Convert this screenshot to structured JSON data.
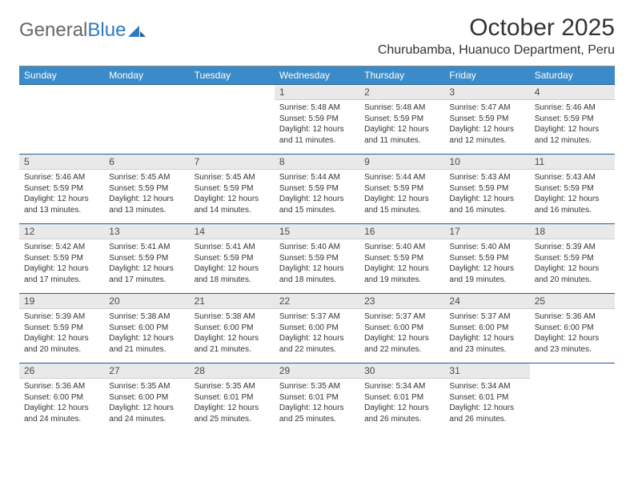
{
  "brand": {
    "part1": "General",
    "part2": "Blue"
  },
  "title": "October 2025",
  "location": "Churubamba, Huanuco Department, Peru",
  "colors": {
    "header_bg": "#3b8bc8",
    "header_text": "#ffffff",
    "daynum_bg": "#e9e9e9",
    "rule": "#1f5f96",
    "logo_gray": "#666666",
    "logo_blue": "#2f7bbf"
  },
  "weekdays": [
    "Sunday",
    "Monday",
    "Tuesday",
    "Wednesday",
    "Thursday",
    "Friday",
    "Saturday"
  ],
  "weeks": [
    [
      {
        "num": "",
        "lines": [
          "",
          "",
          "",
          ""
        ]
      },
      {
        "num": "",
        "lines": [
          "",
          "",
          "",
          ""
        ]
      },
      {
        "num": "",
        "lines": [
          "",
          "",
          "",
          ""
        ]
      },
      {
        "num": "1",
        "lines": [
          "Sunrise: 5:48 AM",
          "Sunset: 5:59 PM",
          "Daylight: 12 hours",
          "and 11 minutes."
        ]
      },
      {
        "num": "2",
        "lines": [
          "Sunrise: 5:48 AM",
          "Sunset: 5:59 PM",
          "Daylight: 12 hours",
          "and 11 minutes."
        ]
      },
      {
        "num": "3",
        "lines": [
          "Sunrise: 5:47 AM",
          "Sunset: 5:59 PM",
          "Daylight: 12 hours",
          "and 12 minutes."
        ]
      },
      {
        "num": "4",
        "lines": [
          "Sunrise: 5:46 AM",
          "Sunset: 5:59 PM",
          "Daylight: 12 hours",
          "and 12 minutes."
        ]
      }
    ],
    [
      {
        "num": "5",
        "lines": [
          "Sunrise: 5:46 AM",
          "Sunset: 5:59 PM",
          "Daylight: 12 hours",
          "and 13 minutes."
        ]
      },
      {
        "num": "6",
        "lines": [
          "Sunrise: 5:45 AM",
          "Sunset: 5:59 PM",
          "Daylight: 12 hours",
          "and 13 minutes."
        ]
      },
      {
        "num": "7",
        "lines": [
          "Sunrise: 5:45 AM",
          "Sunset: 5:59 PM",
          "Daylight: 12 hours",
          "and 14 minutes."
        ]
      },
      {
        "num": "8",
        "lines": [
          "Sunrise: 5:44 AM",
          "Sunset: 5:59 PM",
          "Daylight: 12 hours",
          "and 15 minutes."
        ]
      },
      {
        "num": "9",
        "lines": [
          "Sunrise: 5:44 AM",
          "Sunset: 5:59 PM",
          "Daylight: 12 hours",
          "and 15 minutes."
        ]
      },
      {
        "num": "10",
        "lines": [
          "Sunrise: 5:43 AM",
          "Sunset: 5:59 PM",
          "Daylight: 12 hours",
          "and 16 minutes."
        ]
      },
      {
        "num": "11",
        "lines": [
          "Sunrise: 5:43 AM",
          "Sunset: 5:59 PM",
          "Daylight: 12 hours",
          "and 16 minutes."
        ]
      }
    ],
    [
      {
        "num": "12",
        "lines": [
          "Sunrise: 5:42 AM",
          "Sunset: 5:59 PM",
          "Daylight: 12 hours",
          "and 17 minutes."
        ]
      },
      {
        "num": "13",
        "lines": [
          "Sunrise: 5:41 AM",
          "Sunset: 5:59 PM",
          "Daylight: 12 hours",
          "and 17 minutes."
        ]
      },
      {
        "num": "14",
        "lines": [
          "Sunrise: 5:41 AM",
          "Sunset: 5:59 PM",
          "Daylight: 12 hours",
          "and 18 minutes."
        ]
      },
      {
        "num": "15",
        "lines": [
          "Sunrise: 5:40 AM",
          "Sunset: 5:59 PM",
          "Daylight: 12 hours",
          "and 18 minutes."
        ]
      },
      {
        "num": "16",
        "lines": [
          "Sunrise: 5:40 AM",
          "Sunset: 5:59 PM",
          "Daylight: 12 hours",
          "and 19 minutes."
        ]
      },
      {
        "num": "17",
        "lines": [
          "Sunrise: 5:40 AM",
          "Sunset: 5:59 PM",
          "Daylight: 12 hours",
          "and 19 minutes."
        ]
      },
      {
        "num": "18",
        "lines": [
          "Sunrise: 5:39 AM",
          "Sunset: 5:59 PM",
          "Daylight: 12 hours",
          "and 20 minutes."
        ]
      }
    ],
    [
      {
        "num": "19",
        "lines": [
          "Sunrise: 5:39 AM",
          "Sunset: 5:59 PM",
          "Daylight: 12 hours",
          "and 20 minutes."
        ]
      },
      {
        "num": "20",
        "lines": [
          "Sunrise: 5:38 AM",
          "Sunset: 6:00 PM",
          "Daylight: 12 hours",
          "and 21 minutes."
        ]
      },
      {
        "num": "21",
        "lines": [
          "Sunrise: 5:38 AM",
          "Sunset: 6:00 PM",
          "Daylight: 12 hours",
          "and 21 minutes."
        ]
      },
      {
        "num": "22",
        "lines": [
          "Sunrise: 5:37 AM",
          "Sunset: 6:00 PM",
          "Daylight: 12 hours",
          "and 22 minutes."
        ]
      },
      {
        "num": "23",
        "lines": [
          "Sunrise: 5:37 AM",
          "Sunset: 6:00 PM",
          "Daylight: 12 hours",
          "and 22 minutes."
        ]
      },
      {
        "num": "24",
        "lines": [
          "Sunrise: 5:37 AM",
          "Sunset: 6:00 PM",
          "Daylight: 12 hours",
          "and 23 minutes."
        ]
      },
      {
        "num": "25",
        "lines": [
          "Sunrise: 5:36 AM",
          "Sunset: 6:00 PM",
          "Daylight: 12 hours",
          "and 23 minutes."
        ]
      }
    ],
    [
      {
        "num": "26",
        "lines": [
          "Sunrise: 5:36 AM",
          "Sunset: 6:00 PM",
          "Daylight: 12 hours",
          "and 24 minutes."
        ]
      },
      {
        "num": "27",
        "lines": [
          "Sunrise: 5:35 AM",
          "Sunset: 6:00 PM",
          "Daylight: 12 hours",
          "and 24 minutes."
        ]
      },
      {
        "num": "28",
        "lines": [
          "Sunrise: 5:35 AM",
          "Sunset: 6:01 PM",
          "Daylight: 12 hours",
          "and 25 minutes."
        ]
      },
      {
        "num": "29",
        "lines": [
          "Sunrise: 5:35 AM",
          "Sunset: 6:01 PM",
          "Daylight: 12 hours",
          "and 25 minutes."
        ]
      },
      {
        "num": "30",
        "lines": [
          "Sunrise: 5:34 AM",
          "Sunset: 6:01 PM",
          "Daylight: 12 hours",
          "and 26 minutes."
        ]
      },
      {
        "num": "31",
        "lines": [
          "Sunrise: 5:34 AM",
          "Sunset: 6:01 PM",
          "Daylight: 12 hours",
          "and 26 minutes."
        ]
      },
      {
        "num": "",
        "lines": [
          "",
          "",
          "",
          ""
        ]
      }
    ]
  ]
}
